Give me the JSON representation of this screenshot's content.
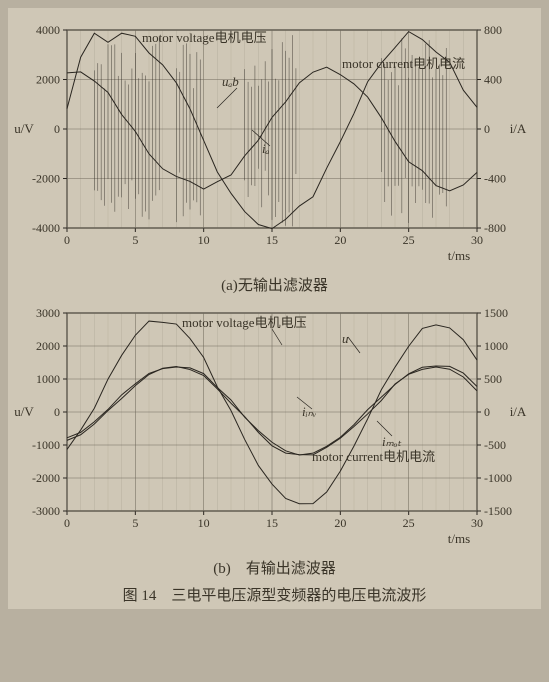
{
  "figure_label": "图 14",
  "figure_title": "三电平电压源型变频器的电压电流波形",
  "chart_a": {
    "type": "line",
    "caption_label": "(a)",
    "caption_text": "无输出滤波器",
    "xlabel": "t/ms",
    "ylabel_left": "u/V",
    "ylabel_right": "i/A",
    "voltage_label": "motor voltage电机电压",
    "current_label": "motor current电机电流",
    "series_uab": "uₐb",
    "series_ia": "iₐ",
    "xlim": [
      0,
      30
    ],
    "xtick_step": 5,
    "ylim_left": [
      -4000,
      4000
    ],
    "ytick_left_step": 2000,
    "ylim_right": [
      -800,
      800
    ],
    "ytick_right_step": 400,
    "background_color": "#cfc7b6",
    "grid_color": "#706a5c",
    "axis_color": "#2a2620",
    "line_color": "#2a2620",
    "line_width": 1,
    "voltage_series": [
      [
        0,
        800
      ],
      [
        1,
        3000
      ],
      [
        2,
        3800
      ],
      [
        3,
        3600
      ],
      [
        4,
        3800
      ],
      [
        5,
        3600
      ],
      [
        6,
        3200
      ],
      [
        7,
        2600
      ],
      [
        8,
        1800
      ],
      [
        9,
        800
      ],
      [
        10,
        -400
      ],
      [
        11,
        -1600
      ],
      [
        12,
        -2600
      ],
      [
        13,
        -3400
      ],
      [
        14,
        -3800
      ],
      [
        15,
        -4000
      ],
      [
        16,
        -3600
      ],
      [
        17,
        -3200
      ],
      [
        18,
        -2600
      ],
      [
        19,
        -1600
      ],
      [
        20,
        -600
      ],
      [
        21,
        600
      ],
      [
        22,
        1800
      ],
      [
        23,
        2800
      ],
      [
        24,
        3400
      ],
      [
        25,
        3800
      ],
      [
        26,
        3600
      ],
      [
        27,
        3200
      ],
      [
        28,
        2600
      ],
      [
        29,
        1600
      ],
      [
        30,
        800
      ]
    ],
    "current_series": [
      [
        0,
        2200
      ],
      [
        1,
        2400
      ],
      [
        2,
        2000
      ],
      [
        3,
        1400
      ],
      [
        4,
        600
      ],
      [
        5,
        -200
      ],
      [
        6,
        -1000
      ],
      [
        7,
        -1600
      ],
      [
        8,
        -2000
      ],
      [
        9,
        -2200
      ],
      [
        10,
        -2400
      ],
      [
        11,
        -2200
      ],
      [
        12,
        -1800
      ],
      [
        13,
        -1200
      ],
      [
        14,
        -400
      ],
      [
        15,
        400
      ],
      [
        16,
        1200
      ],
      [
        17,
        1800
      ],
      [
        18,
        2200
      ],
      [
        19,
        2400
      ],
      [
        20,
        2200
      ],
      [
        21,
        1800
      ],
      [
        22,
        1200
      ],
      [
        23,
        400
      ],
      [
        24,
        -400
      ],
      [
        25,
        -1200
      ],
      [
        26,
        -1800
      ],
      [
        27,
        -2200
      ],
      [
        28,
        -2400
      ],
      [
        29,
        -2200
      ],
      [
        30,
        -1800
      ]
    ],
    "pwm_regions": [
      [
        2,
        7
      ],
      [
        8,
        10
      ],
      [
        13,
        17
      ],
      [
        23,
        28
      ]
    ],
    "pwm_low": -4000,
    "pwm_high": 4000
  },
  "chart_b": {
    "type": "line",
    "caption_label": "(b)",
    "caption_text": "有输出滤波器",
    "xlabel": "t/ms",
    "ylabel_left": "u/V",
    "ylabel_right": "i/A",
    "voltage_label": "motor voltage电机电压",
    "current_label": "motor current电机电流",
    "series_u": "u",
    "series_iinv": "iᵢₙᵥ",
    "series_imot": "iₘₒₜ",
    "xlim": [
      0,
      30
    ],
    "xtick_step": 5,
    "ylim_left": [
      -3000,
      3000
    ],
    "ytick_left_step": 1000,
    "ylim_right": [
      -1500,
      1500
    ],
    "ytick_right_step": 500,
    "background_color": "#cfc7b6",
    "grid_color": "#706a5c",
    "axis_color": "#2a2620",
    "line_color": "#2a2620",
    "line_width": 1,
    "voltage_series": [
      [
        0,
        -1200
      ],
      [
        1,
        -600
      ],
      [
        2,
        200
      ],
      [
        3,
        1000
      ],
      [
        4,
        1800
      ],
      [
        5,
        2400
      ],
      [
        6,
        2700
      ],
      [
        7,
        2800
      ],
      [
        8,
        2600
      ],
      [
        9,
        2200
      ],
      [
        10,
        1600
      ],
      [
        11,
        800
      ],
      [
        12,
        0
      ],
      [
        13,
        -800
      ],
      [
        14,
        -1600
      ],
      [
        15,
        -2200
      ],
      [
        16,
        -2600
      ],
      [
        17,
        -2800
      ],
      [
        18,
        -2700
      ],
      [
        19,
        -2400
      ],
      [
        20,
        -1800
      ],
      [
        21,
        -1000
      ],
      [
        22,
        -200
      ],
      [
        23,
        600
      ],
      [
        24,
        1400
      ],
      [
        25,
        2000
      ],
      [
        26,
        2500
      ],
      [
        27,
        2700
      ],
      [
        28,
        2600
      ],
      [
        29,
        2200
      ],
      [
        30,
        1600
      ]
    ],
    "current_series": [
      [
        0,
        -900
      ],
      [
        1,
        -700
      ],
      [
        2,
        -400
      ],
      [
        3,
        0
      ],
      [
        4,
        400
      ],
      [
        5,
        800
      ],
      [
        6,
        1100
      ],
      [
        7,
        1300
      ],
      [
        8,
        1350
      ],
      [
        9,
        1300
      ],
      [
        10,
        1100
      ],
      [
        11,
        700
      ],
      [
        12,
        300
      ],
      [
        13,
        -200
      ],
      [
        14,
        -600
      ],
      [
        15,
        -1000
      ],
      [
        16,
        -1250
      ],
      [
        17,
        -1350
      ],
      [
        18,
        -1300
      ],
      [
        19,
        -1100
      ],
      [
        20,
        -800
      ],
      [
        21,
        -400
      ],
      [
        22,
        0
      ],
      [
        23,
        400
      ],
      [
        24,
        800
      ],
      [
        25,
        1100
      ],
      [
        26,
        1300
      ],
      [
        27,
        1350
      ],
      [
        28,
        1300
      ],
      [
        29,
        1100
      ],
      [
        30,
        700
      ]
    ],
    "current_series_mot": [
      [
        0,
        -800
      ],
      [
        1,
        -600
      ],
      [
        2,
        -300
      ],
      [
        3,
        100
      ],
      [
        4,
        500
      ],
      [
        5,
        850
      ],
      [
        6,
        1150
      ],
      [
        7,
        1350
      ],
      [
        8,
        1400
      ],
      [
        9,
        1350
      ],
      [
        10,
        1150
      ],
      [
        11,
        750
      ],
      [
        12,
        350
      ],
      [
        13,
        -150
      ],
      [
        14,
        -550
      ],
      [
        15,
        -950
      ],
      [
        16,
        -1200
      ],
      [
        17,
        -1300
      ],
      [
        18,
        -1250
      ],
      [
        19,
        -1050
      ],
      [
        20,
        -750
      ],
      [
        21,
        -350
      ],
      [
        22,
        50
      ],
      [
        23,
        450
      ],
      [
        24,
        850
      ],
      [
        25,
        1150
      ],
      [
        26,
        1350
      ],
      [
        27,
        1400
      ],
      [
        28,
        1350
      ],
      [
        29,
        1150
      ],
      [
        30,
        750
      ]
    ]
  }
}
